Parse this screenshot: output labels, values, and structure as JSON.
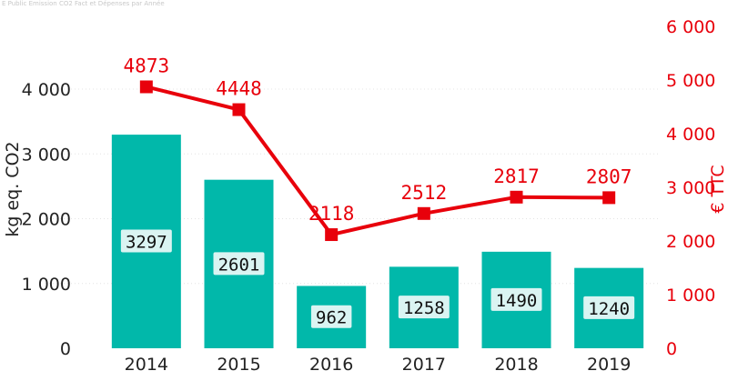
{
  "source_note": "E Public Emission CO2 Fact et Dépenses par Année",
  "chart_data": {
    "type": "bar",
    "categories": [
      "2014",
      "2015",
      "2016",
      "2017",
      "2018",
      "2019"
    ],
    "series": [
      {
        "type": "bar",
        "axis": "left",
        "values": [
          3297,
          2601,
          962,
          1258,
          1490,
          1240
        ],
        "color": "#01b8aa"
      },
      {
        "type": "line",
        "axis": "right",
        "values": [
          4873,
          4448,
          2118,
          2512,
          2817,
          2807
        ],
        "color": "#e8000b"
      }
    ],
    "y_left": {
      "label": "kg eq. CO2",
      "range": [
        0,
        4400
      ],
      "ticks": [
        0,
        1000,
        2000,
        3000,
        4000
      ],
      "tick_labels": [
        "0",
        "1 000",
        "2 000",
        "3 000",
        "4 000"
      ]
    },
    "y_right": {
      "label": "€ TTC",
      "range": [
        0,
        6000
      ],
      "ticks": [
        0,
        1000,
        2000,
        3000,
        4000,
        5000,
        6000
      ],
      "tick_labels": [
        "0",
        "1 000",
        "2 000",
        "3 000",
        "4 000",
        "5 000",
        "6 000"
      ]
    },
    "grid": true,
    "data_labels": true
  }
}
